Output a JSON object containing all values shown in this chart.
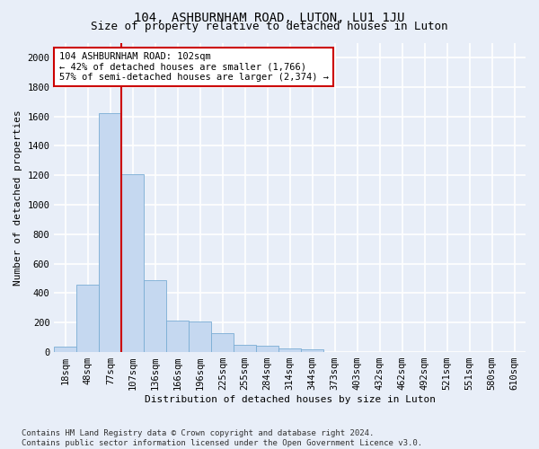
{
  "title": "104, ASHBURNHAM ROAD, LUTON, LU1 1JU",
  "subtitle": "Size of property relative to detached houses in Luton",
  "xlabel": "Distribution of detached houses by size in Luton",
  "ylabel": "Number of detached properties",
  "categories": [
    "18sqm",
    "48sqm",
    "77sqm",
    "107sqm",
    "136sqm",
    "166sqm",
    "196sqm",
    "225sqm",
    "255sqm",
    "284sqm",
    "314sqm",
    "344sqm",
    "373sqm",
    "403sqm",
    "432sqm",
    "462sqm",
    "492sqm",
    "521sqm",
    "551sqm",
    "580sqm",
    "610sqm"
  ],
  "values": [
    40,
    455,
    1620,
    1205,
    490,
    215,
    210,
    130,
    50,
    42,
    25,
    18,
    0,
    0,
    0,
    0,
    0,
    0,
    0,
    0,
    0
  ],
  "bar_color": "#c5d8f0",
  "bar_edge_color": "#7aadd4",
  "vline_x": 2.5,
  "vline_color": "#cc0000",
  "annotation_text": "104 ASHBURNHAM ROAD: 102sqm\n← 42% of detached houses are smaller (1,766)\n57% of semi-detached houses are larger (2,374) →",
  "annotation_box_color": "white",
  "annotation_box_edge_color": "#cc0000",
  "ylim": [
    0,
    2100
  ],
  "yticks": [
    0,
    200,
    400,
    600,
    800,
    1000,
    1200,
    1400,
    1600,
    1800,
    2000
  ],
  "footnote": "Contains HM Land Registry data © Crown copyright and database right 2024.\nContains public sector information licensed under the Open Government Licence v3.0.",
  "bg_color": "#e8eef8",
  "grid_color": "white",
  "title_fontsize": 10,
  "subtitle_fontsize": 9,
  "axis_label_fontsize": 8,
  "tick_fontsize": 7.5,
  "annotation_fontsize": 7.5,
  "footnote_fontsize": 6.5
}
